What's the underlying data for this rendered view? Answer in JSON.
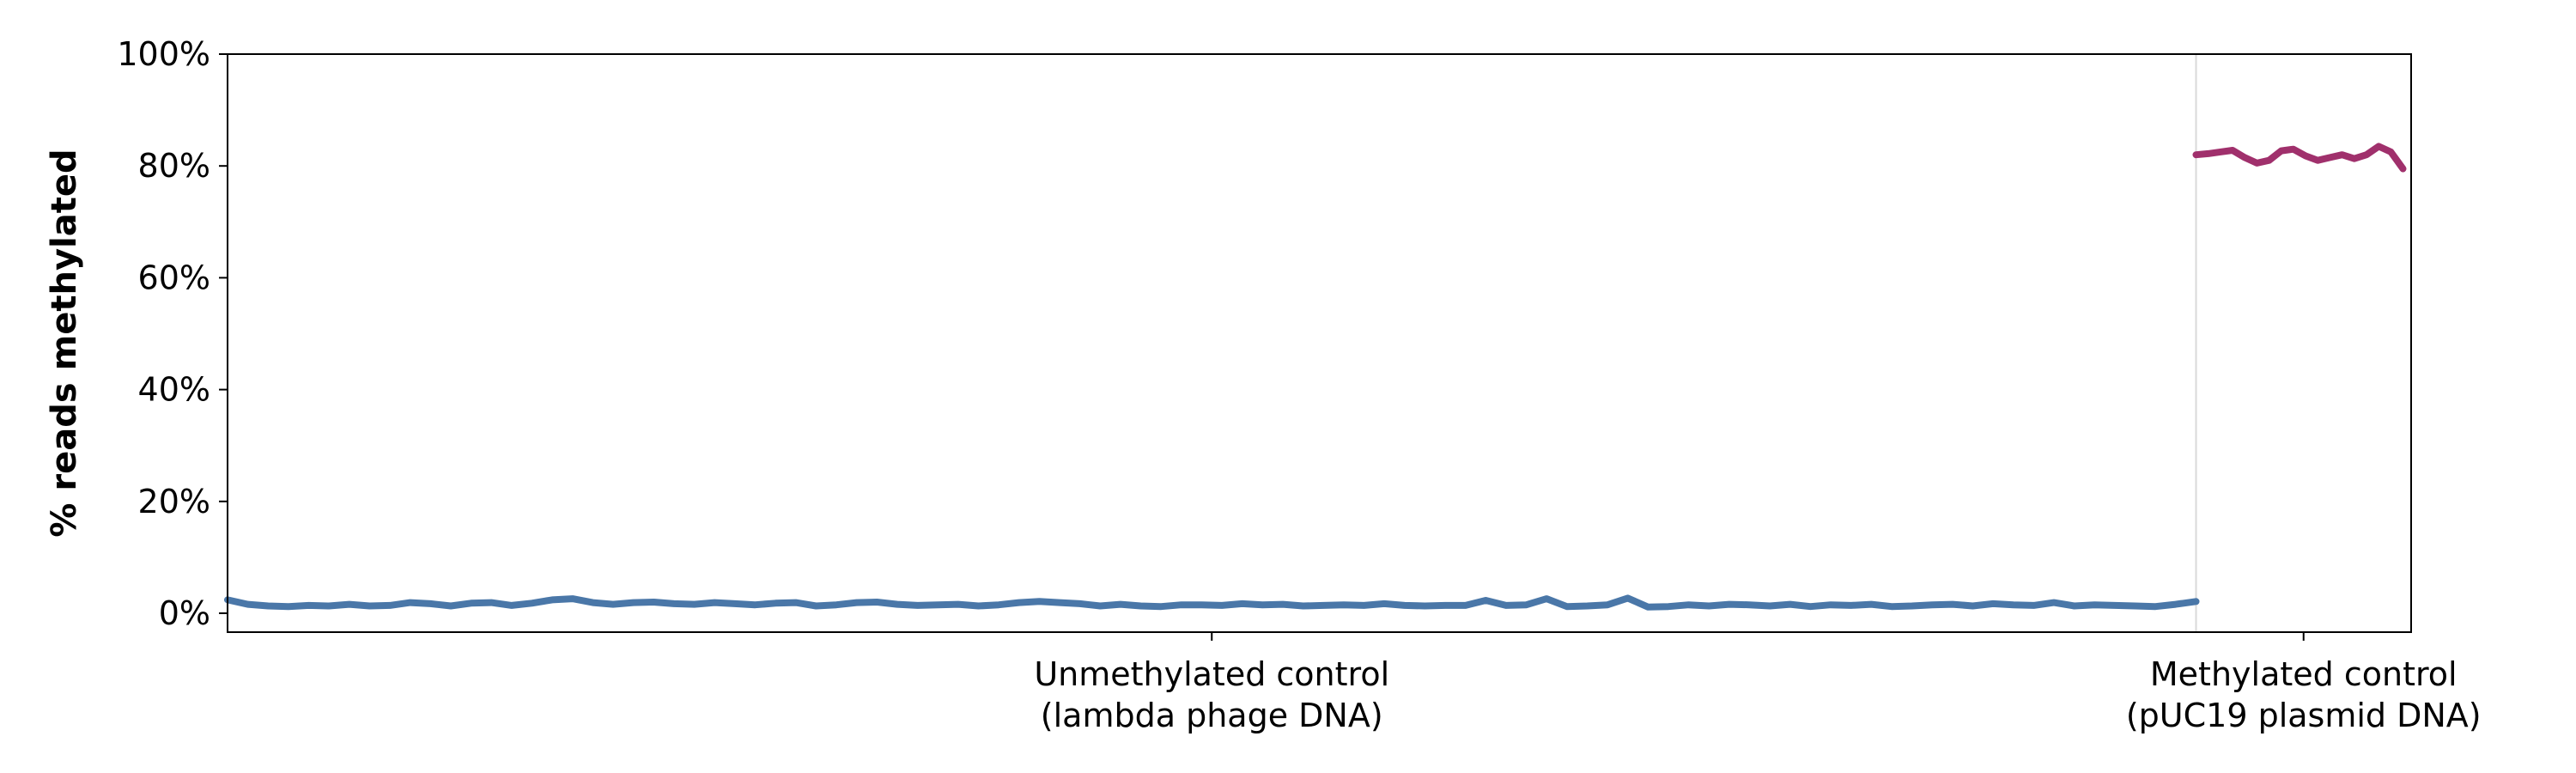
{
  "chart_data": {
    "type": "line",
    "title": "",
    "xlabel": "",
    "ylabel": "% reads methylated",
    "ylim": [
      0,
      100
    ],
    "yticks": [
      0,
      20,
      40,
      60,
      80,
      100
    ],
    "ytick_labels": [
      "0%",
      "20%",
      "40%",
      "60%",
      "80%",
      "100%"
    ],
    "grid": false,
    "legend": "none",
    "groups": [
      {
        "label_lines": [
          "Unmethylated control",
          "(lambda phage DNA)"
        ],
        "relative_width": 48500,
        "color": "#4a77a8"
      },
      {
        "label_lines": [
          "Methylated control",
          "(pUC19 plasmid DNA)"
        ],
        "relative_width": 5300,
        "color": "#a0306c"
      }
    ],
    "series": [
      {
        "group": 0,
        "color": "#4a77a8",
        "x": [
          0,
          500,
          1000,
          1500,
          2000,
          2500,
          3000,
          3500,
          4000,
          4500,
          5000,
          5500,
          6000,
          6500,
          7000,
          7500,
          8000,
          8500,
          9000,
          9500,
          10000,
          10500,
          11000,
          11500,
          12000,
          12500,
          13000,
          13500,
          14000,
          14500,
          15000,
          15500,
          16000,
          16500,
          17000,
          17500,
          18000,
          18500,
          19000,
          19500,
          20000,
          20500,
          21000,
          21500,
          22000,
          22500,
          23000,
          23500,
          24000,
          24500,
          25000,
          25500,
          26000,
          26500,
          27000,
          27500,
          28000,
          28500,
          29000,
          29500,
          30000,
          30500,
          31000,
          31500,
          32000,
          32500,
          33000,
          33500,
          34000,
          34500,
          35000,
          35500,
          36000,
          36500,
          37000,
          37500,
          38000,
          38500,
          39000,
          39500,
          40000,
          40500,
          41000,
          41500,
          42000,
          42500,
          43000,
          43500,
          44000,
          44500,
          45000,
          45500,
          46000,
          46500,
          47000,
          47500,
          48000,
          48500
        ],
        "y": [
          2.4,
          1.6,
          1.3,
          1.2,
          1.4,
          1.3,
          1.6,
          1.3,
          1.4,
          1.9,
          1.7,
          1.3,
          1.8,
          1.9,
          1.4,
          1.8,
          2.4,
          2.6,
          1.9,
          1.6,
          1.9,
          2.0,
          1.7,
          1.6,
          1.9,
          1.7,
          1.5,
          1.8,
          1.9,
          1.3,
          1.5,
          1.9,
          2.0,
          1.6,
          1.4,
          1.5,
          1.6,
          1.3,
          1.5,
          1.9,
          2.1,
          1.9,
          1.7,
          1.3,
          1.6,
          1.3,
          1.2,
          1.5,
          1.5,
          1.4,
          1.7,
          1.5,
          1.6,
          1.3,
          1.4,
          1.5,
          1.4,
          1.7,
          1.4,
          1.3,
          1.4,
          1.4,
          2.3,
          1.4,
          1.5,
          2.6,
          1.2,
          1.3,
          1.5,
          2.7,
          1.1,
          1.2,
          1.5,
          1.3,
          1.6,
          1.5,
          1.3,
          1.6,
          1.2,
          1.5,
          1.4,
          1.6,
          1.2,
          1.3,
          1.5,
          1.6,
          1.3,
          1.7,
          1.5,
          1.4,
          1.9,
          1.3,
          1.5,
          1.4,
          1.3,
          1.2,
          1.6,
          2.1
        ]
      },
      {
        "group": 1,
        "color": "#a0306c",
        "x": [
          0,
          300,
          600,
          900,
          1200,
          1500,
          1800,
          2100,
          2400,
          2700,
          3000,
          3300,
          3600,
          3900,
          4200,
          4500,
          4800,
          5100
        ],
        "y": [
          82.0,
          82.2,
          82.5,
          82.8,
          81.5,
          80.5,
          81.0,
          82.7,
          83.0,
          81.8,
          81.0,
          81.5,
          82.0,
          81.3,
          82.0,
          83.5,
          82.5,
          79.5
        ]
      }
    ]
  }
}
